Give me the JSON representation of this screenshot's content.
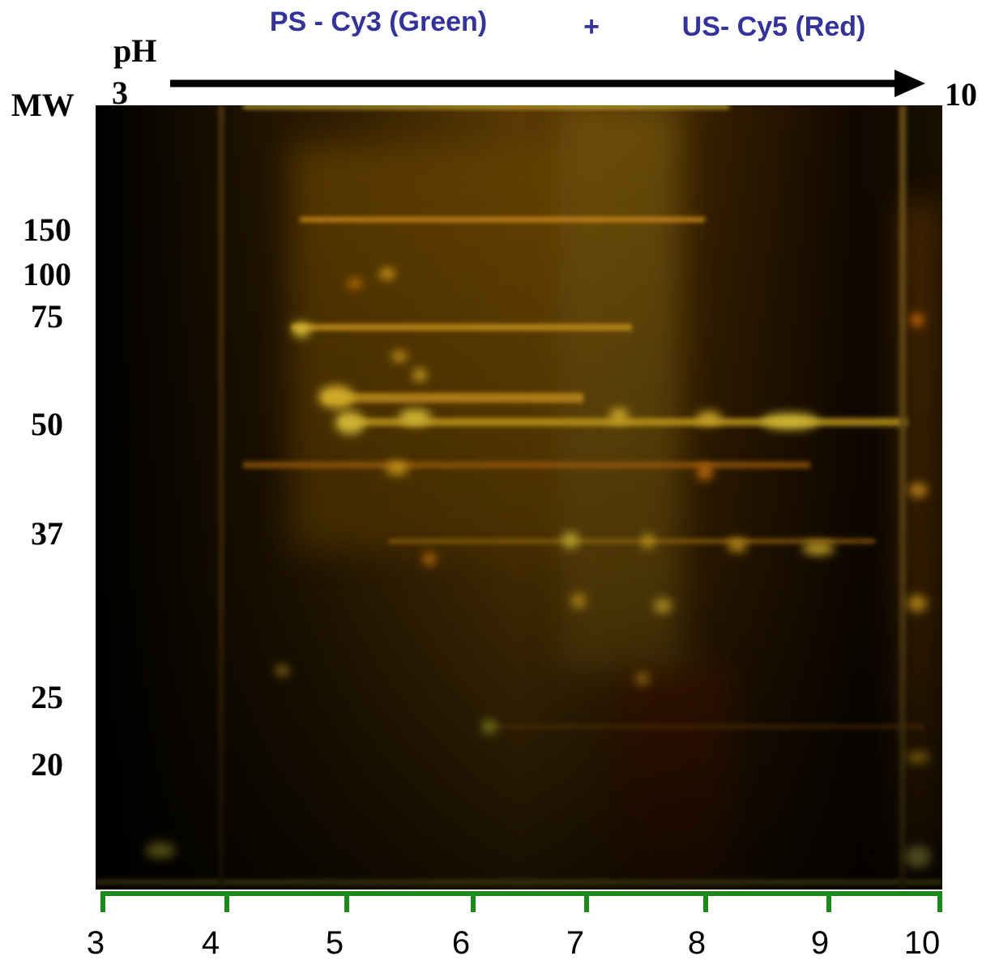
{
  "header": {
    "green_label": "PS - Cy3 (Green)",
    "plus": "+",
    "red_label": "US- Cy5 (Red)"
  },
  "ph_axis": {
    "title": "pH",
    "start": "3",
    "end": "10"
  },
  "mw_axis": {
    "title": "MW",
    "labels": [
      "150",
      "100",
      "75",
      "50",
      "37",
      "25",
      "20"
    ]
  },
  "ph_scale": {
    "labels": [
      "3",
      "4",
      "5",
      "6",
      "7",
      "8",
      "9",
      "10"
    ]
  }
}
